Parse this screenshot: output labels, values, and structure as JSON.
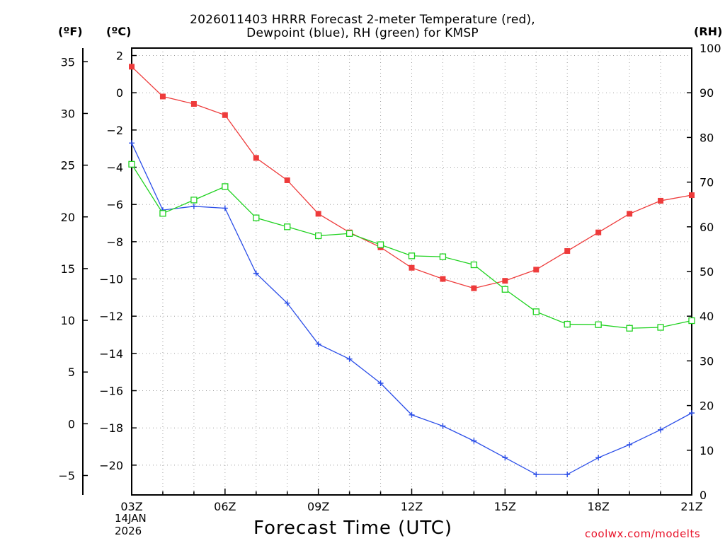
{
  "title_line1": "2026011403 HRRR Forecast 2-meter Temperature (red),",
  "title_line2": "Dewpoint (blue), RH (green) for KMSP",
  "units": {
    "fahrenheit": "(ºF)",
    "celsius": "(ºC)",
    "rh": "(RH)"
  },
  "date_label": {
    "day": "14JAN",
    "year": "2026"
  },
  "xaxis_title": "Forecast Time (UTC)",
  "credit": "coolwx.com/modelts",
  "colors": {
    "temperature": "#ee3b3b",
    "dewpoint": "#2b4ee8",
    "rh": "#1fd21f",
    "credit": "#e8132a",
    "grid": "#a0a0a0"
  },
  "chart_data": {
    "type": "line",
    "title": "2026011403 HRRR Forecast 2-meter Temperature (red), Dewpoint (blue), RH (green) for KMSP",
    "xlabel": "Forecast Time (UTC)",
    "x": [
      3,
      4,
      5,
      6,
      7,
      8,
      9,
      10,
      11,
      12,
      13,
      14,
      15,
      16,
      17,
      18,
      19,
      20,
      21
    ],
    "xlim": [
      3,
      21
    ],
    "x_ticks": [
      3,
      6,
      9,
      12,
      15,
      18,
      21
    ],
    "x_tick_labels": [
      "03Z",
      "06Z",
      "09Z",
      "12Z",
      "15Z",
      "18Z",
      "21Z"
    ],
    "y_celsius": {
      "label": "(ºC)",
      "lim": [
        -21.6,
        2.4
      ],
      "ticks": [
        2,
        0,
        -2,
        -4,
        -6,
        -8,
        -10,
        -12,
        -14,
        -16,
        -18,
        -20
      ],
      "tick_labels": [
        "2",
        "0",
        "−2",
        "−4",
        "−6",
        "−8",
        "−10",
        "−12",
        "−14",
        "−16",
        "−18",
        "−20"
      ]
    },
    "y_fahrenheit": {
      "label": "(ºF)",
      "ticks": [
        35,
        30,
        25,
        20,
        15,
        10,
        5,
        0,
        -5
      ],
      "tick_labels": [
        "35",
        "30",
        "25",
        "20",
        "15",
        "10",
        "5",
        "0",
        "−5"
      ]
    },
    "y_rh": {
      "label": "(RH)",
      "lim": [
        0,
        100
      ],
      "ticks": [
        100,
        90,
        80,
        70,
        60,
        50,
        40,
        30,
        20,
        10,
        0
      ],
      "tick_labels": [
        "100",
        "90",
        "80",
        "70",
        "60",
        "50",
        "40",
        "30",
        "20",
        "10",
        "0"
      ]
    },
    "grid": true,
    "series": [
      {
        "name": "Temperature",
        "units": "C",
        "axis": "celsius",
        "color": "#ee3b3b",
        "marker": "filled-square",
        "values": [
          1.4,
          -0.2,
          -0.6,
          -1.2,
          -3.5,
          -4.7,
          -6.5,
          -7.5,
          -8.3,
          -9.4,
          -10.0,
          -10.5,
          -10.1,
          -9.5,
          -8.5,
          -7.5,
          -6.5,
          -5.8,
          -5.5
        ]
      },
      {
        "name": "Dewpoint",
        "units": "C",
        "axis": "celsius",
        "color": "#2b4ee8",
        "marker": "plus",
        "values": [
          -2.7,
          -6.3,
          -6.1,
          -6.2,
          -9.7,
          -11.3,
          -13.5,
          -14.3,
          -15.6,
          -17.3,
          -17.9,
          -18.7,
          -19.6,
          -20.5,
          -20.5,
          -19.6,
          -18.9,
          -18.1,
          -17.2
        ]
      },
      {
        "name": "RH",
        "units": "%",
        "axis": "rh",
        "color": "#1fd21f",
        "marker": "open-square",
        "values": [
          74,
          63,
          66,
          69,
          62,
          60,
          58,
          58.5,
          56,
          53.5,
          53.3,
          51.5,
          46,
          41,
          38.2,
          38.1,
          37.3,
          37.5,
          39
        ]
      }
    ]
  }
}
